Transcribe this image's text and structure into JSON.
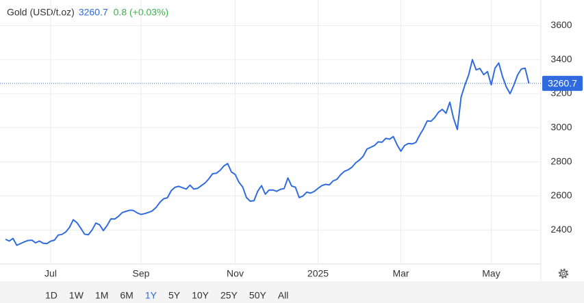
{
  "chart_data": {
    "type": "line",
    "title": "Gold (USD/t.oz)",
    "change": "0.8 (+0.03%)",
    "categories": [
      null,
      null,
      null,
      null,
      null,
      null,
      null,
      null,
      null,
      null,
      null,
      null,
      "Jul",
      null,
      null,
      null,
      null,
      null,
      null,
      null,
      null,
      null,
      null,
      null,
      null,
      null,
      null,
      null,
      null,
      null,
      null,
      null,
      null,
      null,
      null,
      null,
      "Sep",
      null,
      null,
      null,
      null,
      null,
      null,
      null,
      null,
      null,
      null,
      null,
      null,
      null,
      null,
      null,
      null,
      null,
      null,
      null,
      null,
      null,
      null,
      null,
      null,
      "Nov",
      null,
      null,
      null,
      null,
      null,
      null,
      null,
      null,
      null,
      null,
      null,
      null,
      null,
      null,
      null,
      null,
      null,
      null,
      null,
      null,
      null,
      "2025",
      null,
      null,
      null,
      null,
      null,
      null,
      null,
      null,
      null,
      null,
      null,
      null,
      null,
      null,
      null,
      null,
      null,
      null,
      null,
      null,
      null,
      "Mar",
      null,
      null,
      null,
      null,
      null,
      null,
      null,
      null,
      null,
      null,
      null,
      null,
      null,
      null,
      null,
      null,
      null,
      null,
      null,
      null,
      null,
      null,
      null,
      "May",
      null,
      null,
      null,
      null,
      null,
      null,
      null,
      null,
      null,
      null
    ],
    "series": [
      {
        "name": "Gold",
        "color": "#2f6bdf",
        "values": [
          2345,
          2335,
          2350,
          2310,
          2320,
          2330,
          2338,
          2340,
          2324,
          2335,
          2322,
          2320,
          2334,
          2340,
          2370,
          2374,
          2388,
          2415,
          2460,
          2442,
          2410,
          2375,
          2372,
          2400,
          2440,
          2430,
          2396,
          2427,
          2465,
          2464,
          2480,
          2502,
          2509,
          2516,
          2514,
          2500,
          2491,
          2496,
          2503,
          2512,
          2532,
          2562,
          2583,
          2589,
          2630,
          2650,
          2656,
          2648,
          2640,
          2663,
          2640,
          2644,
          2660,
          2676,
          2700,
          2730,
          2733,
          2750,
          2776,
          2790,
          2740,
          2726,
          2680,
          2652,
          2590,
          2569,
          2572,
          2628,
          2660,
          2610,
          2634,
          2635,
          2627,
          2638,
          2643,
          2705,
          2658,
          2651,
          2590,
          2599,
          2622,
          2616,
          2626,
          2644,
          2660,
          2668,
          2664,
          2688,
          2697,
          2724,
          2744,
          2753,
          2768,
          2794,
          2810,
          2833,
          2875,
          2885,
          2896,
          2917,
          2915,
          2938,
          2933,
          2948,
          2900,
          2862,
          2896,
          2908,
          2905,
          2914,
          2957,
          2994,
          3040,
          3038,
          3060,
          3091,
          3108,
          3085,
          3150,
          3055,
          2990,
          3180,
          3250,
          3310,
          3400,
          3340,
          3348,
          3312,
          3330,
          3252,
          3350,
          3380,
          3300,
          3240,
          3200,
          3250,
          3310,
          3345,
          3350,
          3260.7
        ]
      }
    ],
    "ylim": [
      2200,
      3750
    ],
    "yticks": [
      2400,
      2600,
      2800,
      3000,
      3200,
      3400,
      3600
    ],
    "grid": true,
    "range_buttons": [
      "1D",
      "1W",
      "1M",
      "6M",
      "1Y",
      "5Y",
      "10Y",
      "25Y",
      "50Y",
      "All"
    ],
    "active_range": 4
  }
}
